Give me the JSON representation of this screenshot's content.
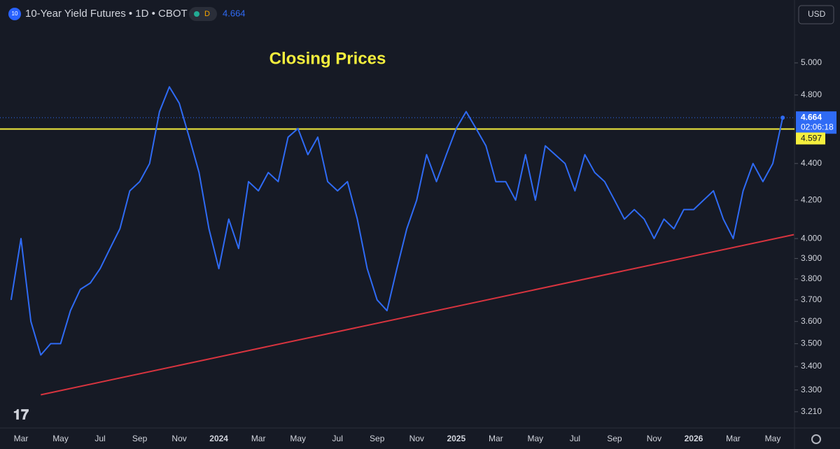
{
  "chart_data": {
    "type": "line",
    "title": "10-Year Yield Futures • 1D • CBOT",
    "symbol_badge": "10",
    "interval_badge": "D",
    "currency": "USD",
    "annotation": "Closing Prices",
    "countdown": "02:06:18",
    "categories": [
      null,
      "Mar",
      null,
      null,
      null,
      "May",
      null,
      null,
      null,
      "Jul",
      null,
      null,
      null,
      "Sep",
      null,
      null,
      null,
      "Nov",
      null,
      null,
      null,
      "2024",
      null,
      null,
      null,
      "Mar",
      null,
      null,
      null,
      "May",
      null,
      null,
      null,
      "Jul",
      null,
      null,
      null,
      "Sep",
      null,
      null,
      null,
      "Nov",
      null,
      null,
      null,
      "2025",
      null,
      null,
      null,
      "Mar",
      null,
      null,
      null,
      "May",
      null,
      null,
      null,
      "Jul",
      null,
      null,
      null,
      "Sep",
      null,
      null,
      null,
      "Nov",
      null,
      null,
      null,
      "2026",
      null,
      null,
      null,
      "Mar",
      null,
      null,
      null,
      "May",
      null
    ],
    "series": [
      {
        "color": "#2f6bf5",
        "values": [
          3.7,
          4.0,
          3.6,
          3.45,
          3.5,
          3.5,
          3.65,
          3.75,
          3.78,
          3.85,
          3.95,
          4.05,
          4.25,
          4.3,
          4.4,
          4.7,
          4.85,
          4.75,
          4.55,
          4.35,
          4.05,
          3.85,
          4.1,
          3.95,
          4.3,
          4.25,
          4.35,
          4.3,
          4.55,
          4.6,
          4.45,
          4.55,
          4.3,
          4.25,
          4.3,
          4.1,
          3.85,
          3.7,
          3.65,
          3.85,
          4.05,
          4.2,
          4.45,
          4.3,
          4.45,
          4.6,
          4.7,
          4.6,
          4.5,
          4.3,
          4.3,
          4.2,
          4.45,
          4.2,
          4.5,
          4.45,
          4.4,
          4.25,
          4.45,
          4.35,
          4.3,
          4.2,
          4.1,
          4.15,
          4.1,
          4.0,
          4.1,
          4.05,
          4.15,
          4.15,
          4.2,
          4.25,
          4.1,
          4.0,
          4.25,
          4.4,
          4.3,
          4.4,
          4.664
        ]
      }
    ],
    "horizontal_line": {
      "value": 4.597,
      "color": "#f5ef3d"
    },
    "trendline": {
      "values": [
        3.28,
        4.02
      ],
      "color": "#d8343f"
    },
    "log_scale": true,
    "grid": false,
    "ylim": [
      3.15,
      5.25
    ],
    "yticks": [
      {
        "value": 5.0,
        "label": "5.000"
      },
      {
        "value": 4.8,
        "label": "4.800"
      },
      {
        "value": 4.4,
        "label": "4.400"
      },
      {
        "value": 4.2,
        "label": "4.200"
      },
      {
        "value": 4.0,
        "label": "4.000"
      },
      {
        "value": 3.9,
        "label": "3.900"
      },
      {
        "value": 3.8,
        "label": "3.800"
      },
      {
        "value": 3.7,
        "label": "3.700"
      },
      {
        "value": 3.6,
        "label": "3.600"
      },
      {
        "value": 3.5,
        "label": "3.500"
      },
      {
        "value": 3.4,
        "label": "3.400"
      },
      {
        "value": 3.3,
        "label": "3.300"
      },
      {
        "value": 3.21,
        "label": "3.210"
      }
    ]
  }
}
